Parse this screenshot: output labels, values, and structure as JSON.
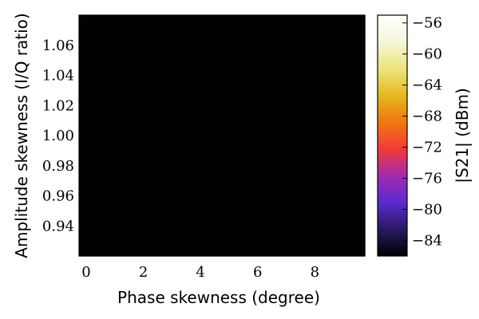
{
  "chart_data": {
    "type": "heatmap",
    "title": "",
    "xlabel": "Phase skewness (degree)",
    "ylabel": "Amplitude skewness (I/Q ratio)",
    "colorbar_label": "|S21| (dBm)",
    "xlim": [
      -0.25,
      9.75
    ],
    "ylim": [
      0.92,
      1.08
    ],
    "x_ticks": [
      "0",
      "2",
      "4",
      "6",
      "8"
    ],
    "x_tick_values": [
      0,
      2,
      4,
      6,
      8
    ],
    "y_ticks": [
      "0.94",
      "0.96",
      "0.98",
      "1.00",
      "1.02",
      "1.04",
      "1.06"
    ],
    "y_tick_values": [
      0.94,
      0.96,
      0.98,
      1.0,
      1.02,
      1.04,
      1.06
    ],
    "x_grid_start": 0,
    "x_grid_step": 0.5,
    "x_count": 20,
    "y_grid_start": 0.922,
    "y_grid_step": 0.004,
    "y_count": 40,
    "value_model": "S21 ≈ -86 + 10·log10((x-5)^2·0.02 + (y-0.993)^2·77 + 0.0017) dBm",
    "z_range": [
      -86,
      -55
    ],
    "colorbar_ticks": [
      "−56",
      "−60",
      "−64",
      "−68",
      "−72",
      "−76",
      "−80",
      "−84"
    ],
    "colorbar_tick_values": [
      -56,
      -60,
      -64,
      -68,
      -72,
      -76,
      -80,
      -84
    ],
    "colormap": [
      "#000000",
      "#2a1a5e",
      "#5a2ad0",
      "#a02bb0",
      "#f23a3a",
      "#f07810",
      "#e6b820",
      "#ece67a",
      "#f6f6d8",
      "#ffffff"
    ],
    "grid": false
  }
}
